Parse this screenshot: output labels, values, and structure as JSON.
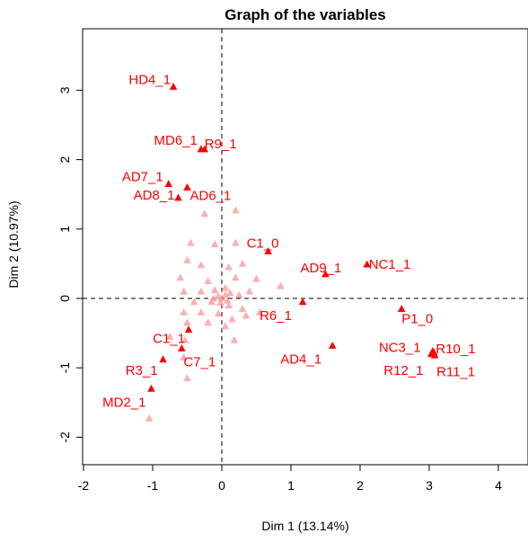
{
  "chart_data": {
    "type": "scatter",
    "title": "Graph of the variables",
    "xlabel": "Dim 1 (13.14%)",
    "ylabel": "Dim 2 (10.97%)",
    "xlim": [
      -2,
      4.5
    ],
    "ylim": [
      -2.3,
      3.9
    ],
    "xticks": [
      -2,
      -1,
      0,
      1,
      2,
      3,
      4
    ],
    "yticks": [
      -2,
      -1,
      0,
      1,
      2,
      3
    ],
    "point_color": "#ff0000",
    "faint_color": "#ff9a9a",
    "reference_lines": [
      {
        "axis": "x",
        "value": 0,
        "style": "dashed"
      },
      {
        "axis": "y",
        "value": 0,
        "style": "dashed"
      }
    ],
    "labeled_points": [
      {
        "label": "HD4_1",
        "x": -0.7,
        "y": 3.05
      },
      {
        "label": "MD6_1",
        "x": -0.3,
        "y": 2.15
      },
      {
        "label": "R9_1",
        "x": -0.25,
        "y": 2.15
      },
      {
        "label": "AD7_1",
        "x": -0.77,
        "y": 1.65
      },
      {
        "label": "AD8_1",
        "x": -0.63,
        "y": 1.45
      },
      {
        "label": "AD6_1",
        "x": -0.5,
        "y": 1.6
      },
      {
        "label": "C1_0",
        "x": 0.67,
        "y": 0.68
      },
      {
        "label": "AD9_1",
        "x": 1.5,
        "y": 0.35
      },
      {
        "label": "NC1_1",
        "x": 2.1,
        "y": 0.49
      },
      {
        "label": "R6_1",
        "x": 1.17,
        "y": -0.05
      },
      {
        "label": "P1_0",
        "x": 2.6,
        "y": -0.15
      },
      {
        "label": "AD4_1",
        "x": 1.6,
        "y": -0.68
      },
      {
        "label": "NC3_1",
        "x": 3.05,
        "y": -0.76
      },
      {
        "label": "R10_1",
        "x": 3.07,
        "y": -0.78
      },
      {
        "label": "R12_1",
        "x": 3.03,
        "y": -0.8
      },
      {
        "label": "R11_1",
        "x": 3.08,
        "y": -0.82
      },
      {
        "label": "C1_1",
        "x": -0.48,
        "y": -0.45
      },
      {
        "label": "C7_1",
        "x": -0.58,
        "y": -0.72
      },
      {
        "label": "R3_1",
        "x": -0.85,
        "y": -0.88
      },
      {
        "label": "MD2_1",
        "x": -1.02,
        "y": -1.3
      }
    ],
    "unlabeled_points": [
      {
        "x": -1.05,
        "y": -1.73
      },
      {
        "x": -0.53,
        "y": -0.6
      },
      {
        "x": 0.18,
        "y": -0.6
      },
      {
        "x": -0.25,
        "y": 1.22
      },
      {
        "x": 0.2,
        "y": 1.27
      },
      {
        "x": -0.45,
        "y": 0.8
      },
      {
        "x": -0.1,
        "y": 0.78
      },
      {
        "x": 0.2,
        "y": 0.8
      },
      {
        "x": -0.5,
        "y": 0.55
      },
      {
        "x": -0.3,
        "y": 0.48
      },
      {
        "x": 0.1,
        "y": 0.45
      },
      {
        "x": 0.3,
        "y": 0.5
      },
      {
        "x": -0.6,
        "y": 0.3
      },
      {
        "x": -0.2,
        "y": 0.25
      },
      {
        "x": 0.2,
        "y": 0.3
      },
      {
        "x": 0.5,
        "y": 0.28
      },
      {
        "x": 0.85,
        "y": 0.18
      },
      {
        "x": -0.55,
        "y": 0.1
      },
      {
        "x": -0.3,
        "y": 0.1
      },
      {
        "x": -0.1,
        "y": 0.12
      },
      {
        "x": 0.05,
        "y": 0.15
      },
      {
        "x": 0.25,
        "y": 0.05
      },
      {
        "x": 0.4,
        "y": 0.1
      },
      {
        "x": -0.4,
        "y": -0.05
      },
      {
        "x": -0.15,
        "y": -0.05
      },
      {
        "x": 0.1,
        "y": -0.1
      },
      {
        "x": 0.3,
        "y": -0.15
      },
      {
        "x": 0.55,
        "y": -0.2
      },
      {
        "x": -0.55,
        "y": -0.2
      },
      {
        "x": -0.3,
        "y": -0.2
      },
      {
        "x": -0.05,
        "y": -0.22
      },
      {
        "x": 0.15,
        "y": -0.3
      },
      {
        "x": 0.35,
        "y": -0.25
      },
      {
        "x": -0.5,
        "y": -0.35
      },
      {
        "x": -0.2,
        "y": -0.35
      },
      {
        "x": 0.05,
        "y": -0.4
      },
      {
        "x": -0.75,
        "y": -0.55
      },
      {
        "x": -0.55,
        "y": -0.85
      },
      {
        "x": -0.5,
        "y": -1.15
      },
      {
        "x": 0.0,
        "y": 0.0
      },
      {
        "x": 0.05,
        "y": 0.05
      },
      {
        "x": -0.05,
        "y": 0.03
      },
      {
        "x": 0.08,
        "y": -0.03
      },
      {
        "x": -0.02,
        "y": -0.06
      },
      {
        "x": 0.12,
        "y": 0.08
      },
      {
        "x": -0.12,
        "y": 0.0
      }
    ]
  }
}
